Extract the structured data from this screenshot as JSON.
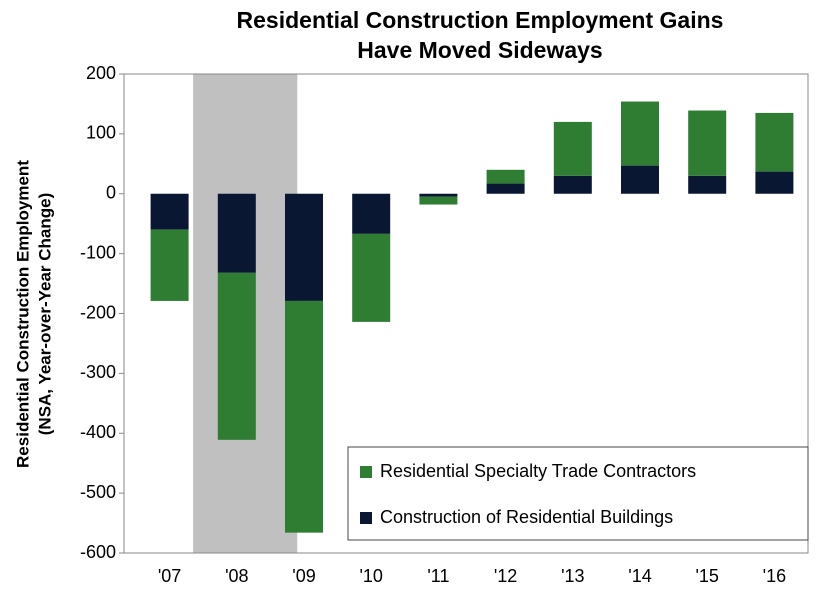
{
  "chart_data": {
    "type": "stacked-bar",
    "title": [
      "Residential Construction Employment Gains",
      "Have Moved Sideways"
    ],
    "y_axis_title": [
      "Residential Construction Employment",
      "(NSA, Year-over-Year Change)"
    ],
    "categories": [
      "'07",
      "'08",
      "'09",
      "'10",
      "'11",
      "'12",
      "'13",
      "'14",
      "'15",
      "'16"
    ],
    "series": [
      {
        "name": "Residential Specialty Trade Contractors",
        "color": "#2e7d32",
        "values": [
          -119,
          -279,
          -387,
          -147,
          -13,
          23,
          90,
          107,
          109,
          98
        ]
      },
      {
        "name": "Construction of Residential Buildings",
        "color": "#0a1733",
        "values": [
          -60,
          -132,
          -179,
          -67,
          -5,
          17,
          30,
          47,
          30,
          37
        ]
      }
    ],
    "stack_order": [
      1,
      0
    ],
    "ylim": [
      -600,
      200
    ],
    "yticks": [
      -600,
      -500,
      -400,
      -300,
      -200,
      -100,
      0,
      100,
      200
    ],
    "grid": false
  }
}
